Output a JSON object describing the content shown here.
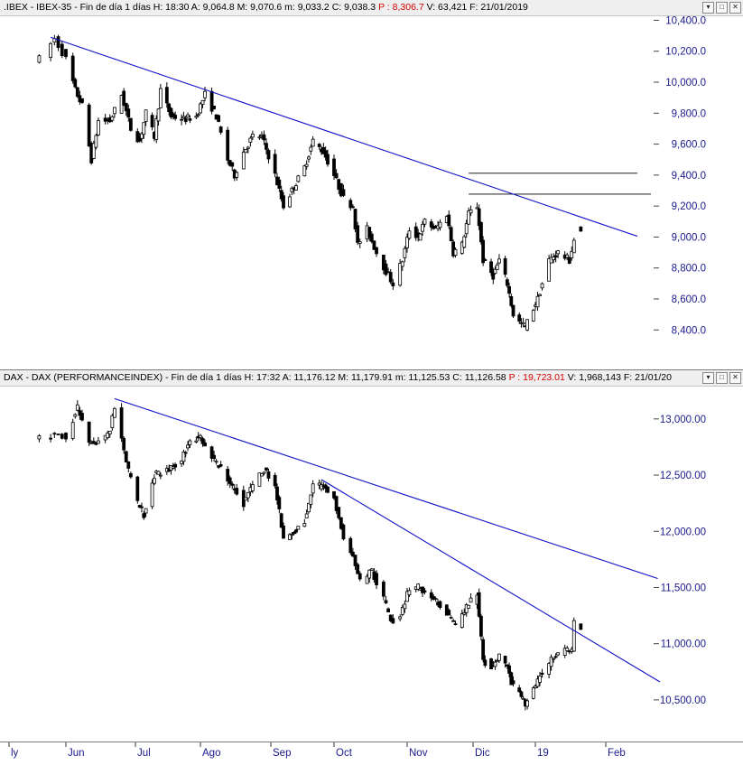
{
  "colors": {
    "trend": "#1010c8",
    "candle": "#000000",
    "axis_text": "#1a1a8c",
    "red": "#d40000",
    "hline": "#000000"
  },
  "x_axis": {
    "labels": [
      "ly",
      "Jun",
      "Jul",
      "Ago",
      "Sep",
      "Oct",
      "Nov",
      "Dic",
      "19",
      "Feb"
    ]
  },
  "panels": [
    {
      "header": {
        "prefix": ".IBEX - IBEX-35 - Fin de día 1 días",
        "h": "H: 18:30",
        "a": "A: 9,064.8",
        "m": "M: 9,070.6",
        "mm": "m: 9,033.2",
        "c": "C: 9,038.3",
        "p": "P : 8,306.7",
        "v": "V: 63,421",
        "f": "F: 21/01/2019"
      },
      "yticks": [
        "10,400.0",
        "10,200.0",
        "10,000.0",
        "9,800.0",
        "9,600.0",
        "9,400.0",
        "9,200.0",
        "9,000.0",
        "8,800.0",
        "8,600.0",
        "8,400.0"
      ]
    },
    {
      "header": {
        "prefix": "DAX - DAX (PERFORMANCEINDEX) - Fin de día 1 días",
        "h": "H: 17:32",
        "a": "A: 11,176.12",
        "m": "M: 11,179.91",
        "mm": "m: 11,125.53",
        "c": "C: 11,126.58",
        "p": "P : 19,723.01",
        "v": "V: 1,968,143",
        "f": "F: 21/01/20"
      },
      "yticks": [
        "13,000.00",
        "12,500.00",
        "12,000.00",
        "11,500.00",
        "11,000.00",
        "10,500.00"
      ]
    }
  ],
  "chart_data": [
    {
      "type": "candlestick",
      "title": ".IBEX - IBEX-35",
      "ylim": [
        8250,
        10420
      ],
      "y_tick_values": [
        10400,
        10200,
        10000,
        9800,
        9600,
        9400,
        9200,
        9000,
        8800,
        8600,
        8400
      ],
      "x_range": [
        "2018-05-25",
        "2019-02-28"
      ],
      "last_bar": {
        "date": "2019-01-21",
        "open": 9064.8,
        "high": 9070.6,
        "low": 9033.2,
        "close": 9038.3
      },
      "anchors": [
        [
          "2018-05-25",
          10150
        ],
        [
          "2018-05-29",
          10280
        ],
        [
          "2018-06-01",
          10150
        ],
        [
          "2018-06-05",
          9950
        ],
        [
          "2018-06-08",
          9850
        ],
        [
          "2018-06-12",
          9500
        ],
        [
          "2018-06-15",
          9750
        ],
        [
          "2018-06-20",
          9750
        ],
        [
          "2018-06-25",
          9920
        ],
        [
          "2018-06-29",
          9700
        ],
        [
          "2018-07-03",
          9620
        ],
        [
          "2018-07-06",
          9800
        ],
        [
          "2018-07-10",
          9650
        ],
        [
          "2018-07-13",
          9950
        ],
        [
          "2018-07-18",
          9780
        ],
        [
          "2018-07-24",
          9760
        ],
        [
          "2018-07-30",
          9780
        ],
        [
          "2018-08-03",
          9920
        ],
        [
          "2018-08-08",
          9780
        ],
        [
          "2018-08-13",
          9500
        ],
        [
          "2018-08-16",
          9400
        ],
        [
          "2018-08-20",
          9550
        ],
        [
          "2018-08-24",
          9650
        ],
        [
          "2018-08-28",
          9650
        ],
        [
          "2018-09-03",
          9400
        ],
        [
          "2018-09-07",
          9200
        ],
        [
          "2018-09-11",
          9300
        ],
        [
          "2018-09-17",
          9450
        ],
        [
          "2018-09-21",
          9620
        ],
        [
          "2018-09-26",
          9550
        ],
        [
          "2018-10-01",
          9400
        ],
        [
          "2018-10-05",
          9250
        ],
        [
          "2018-10-09",
          9200
        ],
        [
          "2018-10-11",
          8950
        ],
        [
          "2018-10-15",
          9050
        ],
        [
          "2018-10-19",
          8900
        ],
        [
          "2018-10-24",
          8750
        ],
        [
          "2018-10-26",
          8700
        ],
        [
          "2018-10-30",
          8850
        ],
        [
          "2018-11-02",
          9050
        ],
        [
          "2018-11-06",
          9000
        ],
        [
          "2018-11-09",
          9100
        ],
        [
          "2018-11-14",
          9050
        ],
        [
          "2018-11-19",
          9150
        ],
        [
          "2018-11-22",
          8900
        ],
        [
          "2018-11-26",
          8950
        ],
        [
          "2018-11-29",
          9150
        ],
        [
          "2018-12-03",
          9200
        ],
        [
          "2018-12-06",
          8850
        ],
        [
          "2018-12-11",
          8750
        ],
        [
          "2018-12-14",
          8850
        ],
        [
          "2018-12-18",
          8700
        ],
        [
          "2018-12-21",
          8500
        ],
        [
          "2018-12-24",
          8450
        ],
        [
          "2018-12-27",
          8420
        ],
        [
          "2019-01-02",
          8600
        ],
        [
          "2019-01-07",
          8850
        ],
        [
          "2019-01-11",
          8900
        ],
        [
          "2019-01-16",
          8850
        ],
        [
          "2019-01-18",
          8980
        ],
        [
          "2019-01-21",
          9050
        ]
      ],
      "trendlines": [
        {
          "from": [
            "2018-05-28",
            10290
          ],
          "to": [
            "2019-02-15",
            9005
          ]
        }
      ],
      "hlines": [
        {
          "from": "2018-11-29",
          "to": "2019-02-15",
          "y": 9412
        },
        {
          "from": "2018-11-29",
          "to": "2019-02-21",
          "y": 9277
        }
      ]
    },
    {
      "type": "candlestick",
      "title": "DAX - DAX (PERFORMANCEINDEX)",
      "ylim": [
        10250,
        13280
      ],
      "y_tick_values": [
        13000,
        12500,
        12000,
        11500,
        11000,
        10500
      ],
      "x_range": [
        "2018-05-25",
        "2019-02-28"
      ],
      "last_bar": {
        "date": "2019-01-21",
        "open": 11176.12,
        "high": 11179.91,
        "low": 11125.53,
        "close": 11126.58
      },
      "anchors": [
        [
          "2018-05-25",
          12850
        ],
        [
          "2018-06-01",
          12850
        ],
        [
          "2018-06-06",
          13100
        ],
        [
          "2018-06-11",
          12800
        ],
        [
          "2018-06-15",
          12800
        ],
        [
          "2018-06-20",
          12900
        ],
        [
          "2018-06-22",
          13100
        ],
        [
          "2018-06-27",
          12600
        ],
        [
          "2018-07-02",
          12250
        ],
        [
          "2018-07-05",
          12150
        ],
        [
          "2018-07-10",
          12500
        ],
        [
          "2018-07-17",
          12550
        ],
        [
          "2018-07-23",
          12650
        ],
        [
          "2018-07-27",
          12800
        ],
        [
          "2018-08-01",
          12850
        ],
        [
          "2018-08-06",
          12650
        ],
        [
          "2018-08-10",
          12550
        ],
        [
          "2018-08-15",
          12400
        ],
        [
          "2018-08-20",
          12250
        ],
        [
          "2018-08-24",
          12400
        ],
        [
          "2018-08-29",
          12550
        ],
        [
          "2018-09-03",
          12400
        ],
        [
          "2018-09-07",
          11950
        ],
        [
          "2018-09-12",
          12000
        ],
        [
          "2018-09-17",
          12100
        ],
        [
          "2018-09-21",
          12400
        ],
        [
          "2018-09-26",
          12400
        ],
        [
          "2018-10-01",
          12300
        ],
        [
          "2018-10-05",
          11950
        ],
        [
          "2018-10-09",
          11800
        ],
        [
          "2018-10-12",
          11550
        ],
        [
          "2018-10-17",
          11650
        ],
        [
          "2018-10-22",
          11400
        ],
        [
          "2018-10-25",
          11200
        ],
        [
          "2018-10-29",
          11250
        ],
        [
          "2018-11-02",
          11500
        ],
        [
          "2018-11-07",
          11500
        ],
        [
          "2018-11-12",
          11400
        ],
        [
          "2018-11-16",
          11350
        ],
        [
          "2018-11-20",
          11250
        ],
        [
          "2018-11-23",
          11150
        ],
        [
          "2018-11-27",
          11300
        ],
        [
          "2018-12-03",
          11450
        ],
        [
          "2018-12-06",
          10850
        ],
        [
          "2018-12-10",
          10800
        ],
        [
          "2018-12-14",
          10900
        ],
        [
          "2018-12-18",
          10800
        ],
        [
          "2018-12-20",
          10650
        ],
        [
          "2018-12-24",
          10550
        ],
        [
          "2018-12-27",
          10450
        ],
        [
          "2018-12-31",
          10600
        ],
        [
          "2019-01-04",
          10750
        ],
        [
          "2019-01-08",
          10850
        ],
        [
          "2019-01-14",
          10950
        ],
        [
          "2019-01-17",
          10950
        ],
        [
          "2019-01-18",
          11200
        ],
        [
          "2019-01-21",
          11130
        ]
      ],
      "trendlines": [
        {
          "from": [
            "2018-06-22",
            13180
          ],
          "to": [
            "2019-02-24",
            11580
          ]
        },
        {
          "from": [
            "2018-09-25",
            12460
          ],
          "to": [
            "2019-02-25",
            10660
          ]
        }
      ],
      "hlines": []
    }
  ]
}
